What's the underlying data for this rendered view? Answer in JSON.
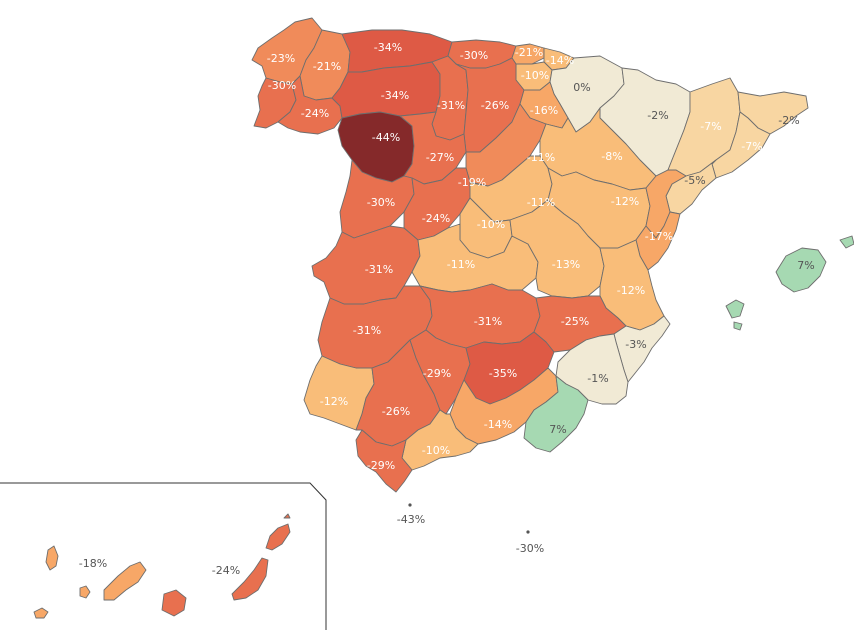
{
  "map": {
    "colors": {
      "deep_red": "#85292a",
      "red": "#de5a45",
      "red_orange": "#e8704f",
      "orange": "#f08b5a",
      "light_orange": "#f7a767",
      "peach": "#f9bd79",
      "sand": "#f8d6a2",
      "cream": "#f1ead5",
      "green": "#a6d9b2"
    },
    "regions": [
      {
        "id": "a-coruna",
        "value": "-23%",
        "color": "orange"
      },
      {
        "id": "lugo",
        "value": "-21%",
        "color": "orange"
      },
      {
        "id": "pontevedra",
        "value": "-30%",
        "color": "red_orange"
      },
      {
        "id": "ourense",
        "value": "-24%",
        "color": "red_orange"
      },
      {
        "id": "asturias",
        "value": "-34%",
        "color": "red"
      },
      {
        "id": "cantabria",
        "value": "-30%",
        "color": "red_orange"
      },
      {
        "id": "bizkaia",
        "value": "-21%",
        "color": "light_orange"
      },
      {
        "id": "gipuzkoa",
        "value": "-14%",
        "color": "peach"
      },
      {
        "id": "alava",
        "value": "-10%",
        "color": "peach"
      },
      {
        "id": "navarra",
        "value": "0%",
        "color": "cream"
      },
      {
        "id": "leon",
        "value": "-34%",
        "color": "red"
      },
      {
        "id": "palencia",
        "value": "-31%",
        "color": "red_orange"
      },
      {
        "id": "burgos",
        "value": "-26%",
        "color": "red_orange"
      },
      {
        "id": "la-rioja",
        "value": "-16%",
        "color": "light_orange"
      },
      {
        "id": "zamora",
        "value": "-44%",
        "color": "deep_red"
      },
      {
        "id": "valladolid",
        "value": "-27%",
        "color": "red_orange"
      },
      {
        "id": "soria",
        "value": "-19%",
        "color": "orange"
      },
      {
        "id": "huesca",
        "value": "-2%",
        "color": "cream"
      },
      {
        "id": "zaragoza",
        "value": "-8%",
        "color": "peach"
      },
      {
        "id": "lleida",
        "value": "-7%",
        "color": "sand"
      },
      {
        "id": "girona",
        "value": "-2%",
        "color": "sand"
      },
      {
        "id": "barcelona",
        "value": "-7%",
        "color": "sand"
      },
      {
        "id": "tarragona",
        "value": "-5%",
        "color": "sand"
      },
      {
        "id": "guadalajara",
        "value": "-11%",
        "color": "peach"
      },
      {
        "id": "segovia",
        "value": "-11%",
        "color": "peach"
      },
      {
        "id": "teruel",
        "value": "-12%",
        "color": "peach"
      },
      {
        "id": "castellon",
        "value": "-17%",
        "color": "light_orange"
      },
      {
        "id": "salamanca",
        "value": "-30%",
        "color": "red_orange"
      },
      {
        "id": "avila",
        "value": "-24%",
        "color": "red_orange"
      },
      {
        "id": "madrid",
        "value": "-10%",
        "color": "peach"
      },
      {
        "id": "caceres",
        "value": "-31%",
        "color": "red_orange"
      },
      {
        "id": "toledo",
        "value": "-11%",
        "color": "peach"
      },
      {
        "id": "cuenca",
        "value": "-13%",
        "color": "peach"
      },
      {
        "id": "valencia",
        "value": "-12%",
        "color": "peach"
      },
      {
        "id": "badajoz",
        "value": "-31%",
        "color": "red_orange"
      },
      {
        "id": "ciudad-real",
        "value": "-31%",
        "color": "red_orange"
      },
      {
        "id": "albacete",
        "value": "-25%",
        "color": "red_orange"
      },
      {
        "id": "alicante",
        "value": "-3%",
        "color": "cream"
      },
      {
        "id": "cordoba",
        "value": "-29%",
        "color": "red_orange"
      },
      {
        "id": "jaen",
        "value": "-35%",
        "color": "red"
      },
      {
        "id": "murcia",
        "value": "-1%",
        "color": "cream"
      },
      {
        "id": "huelva",
        "value": "-12%",
        "color": "peach"
      },
      {
        "id": "sevilla",
        "value": "-26%",
        "color": "red_orange"
      },
      {
        "id": "granada",
        "value": "-14%",
        "color": "light_orange"
      },
      {
        "id": "almeria",
        "value": "7%",
        "color": "green"
      },
      {
        "id": "malaga",
        "value": "-10%",
        "color": "peach"
      },
      {
        "id": "cadiz",
        "value": "-29%",
        "color": "red_orange"
      },
      {
        "id": "baleares",
        "value": "7%",
        "color": "green"
      },
      {
        "id": "ceuta",
        "value": "-43%",
        "color": "deep_red"
      },
      {
        "id": "melilla",
        "value": "-30%",
        "color": "red_orange"
      },
      {
        "id": "santa-cruz-de-tenerife",
        "value": "-18%",
        "color": "light_orange"
      },
      {
        "id": "las-palmas",
        "value": "-24%",
        "color": "red_orange"
      }
    ]
  }
}
